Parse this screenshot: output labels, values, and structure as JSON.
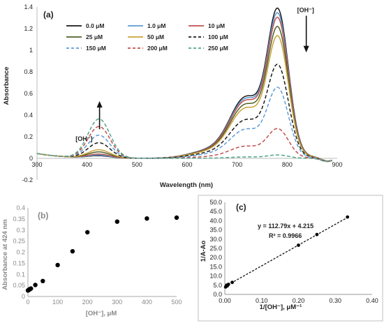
{
  "chart_data": [
    {
      "id": "a",
      "panel_label": "(a)",
      "type": "line",
      "xlabel": "Wavelength (nm)",
      "ylabel": "Absorbance",
      "xlim": [
        300,
        900
      ],
      "ylim": [
        -0.2,
        1.4
      ],
      "xticks": [
        300,
        400,
        500,
        600,
        700,
        800,
        900
      ],
      "yticks": [
        -0.2,
        0,
        0.2,
        0.4,
        0.6,
        0.8,
        1,
        1.2,
        1.4
      ],
      "ytick_labels": [
        "-0.2",
        "0",
        "0.2",
        "0.4",
        "0.6",
        "0.8",
        "1",
        "1.2",
        "1.4"
      ],
      "grid": false,
      "legend_position": "top",
      "annotations": [
        {
          "text": "[OH⁻]",
          "x": 820,
          "y": 1.37,
          "arrow": "down"
        },
        {
          "text": "[OH⁻]",
          "x": 412,
          "y": 0.18,
          "arrow": "up"
        }
      ],
      "series": [
        {
          "name": "0.0 μM",
          "color": "#1a1a1a",
          "dash": "solid",
          "peak424": 0.02,
          "peak780": 1.31
        },
        {
          "name": "1.0 μM",
          "color": "#5b9bd5",
          "dash": "solid",
          "peak424": 0.025,
          "peak780": 1.27
        },
        {
          "name": "10 μM",
          "color": "#c0504d",
          "dash": "solid",
          "peak424": 0.035,
          "peak780": 1.23
        },
        {
          "name": "25 μM",
          "color": "#4f6228",
          "dash": "solid",
          "peak424": 0.055,
          "peak780": 1.15
        },
        {
          "name": "50 μM",
          "color": "#c9a23a",
          "dash": "solid",
          "peak424": 0.075,
          "peak780": 1.07
        },
        {
          "name": "100 μM",
          "color": "#1a1a1a",
          "dash": "dashed",
          "peak424": 0.14,
          "peak780": 0.82
        },
        {
          "name": "150 μM",
          "color": "#5b9bd5",
          "dash": "dashed",
          "peak424": 0.21,
          "peak780": 0.62
        },
        {
          "name": "200 μM",
          "color": "#c0504d",
          "dash": "dashed",
          "peak424": 0.29,
          "peak780": 0.26
        },
        {
          "name": "250 μM",
          "color": "#4fa58a",
          "dash": "dashed",
          "peak424": 0.36,
          "peak780": 0.03
        }
      ]
    },
    {
      "id": "b",
      "panel_label": "(b)",
      "type": "scatter",
      "xlabel": "[OH⁻], μM",
      "ylabel": "Absorbance at 424 nm",
      "xlim": [
        0,
        500
      ],
      "ylim": [
        0,
        0.4
      ],
      "xticks": [
        0,
        100,
        200,
        300,
        400,
        500
      ],
      "yticks": [
        0,
        0.05,
        0.1,
        0.15,
        0.2,
        0.25,
        0.3,
        0.35,
        0.4
      ],
      "ytick_labels": [
        "0",
        "0.05",
        "0.1",
        "0.15",
        "0.2",
        "0.25",
        "0.3",
        "0.35",
        "0.4"
      ],
      "grid": false,
      "x": [
        0,
        1,
        2,
        3,
        4,
        5,
        6,
        8,
        10,
        25,
        50,
        100,
        150,
        200,
        300,
        400,
        500
      ],
      "y": [
        0.027,
        0.028,
        0.029,
        0.03,
        0.031,
        0.032,
        0.033,
        0.034,
        0.036,
        0.052,
        0.07,
        0.142,
        0.204,
        0.29,
        0.338,
        0.352,
        0.356
      ]
    },
    {
      "id": "c",
      "panel_label": "(c)",
      "type": "scatter",
      "xlabel": "1/[OH⁻], μM⁻¹",
      "ylabel": "1/A-Ao",
      "xlim": [
        0,
        0.4
      ],
      "ylim": [
        0,
        50
      ],
      "xticks": [
        0,
        0.1,
        0.2,
        0.3,
        0.4
      ],
      "xtick_labels": [
        "0.00",
        "0.10",
        "0.20",
        "0.30",
        "0.40"
      ],
      "yticks": [
        0,
        5,
        10,
        15,
        20,
        25,
        30,
        35,
        40,
        45,
        50
      ],
      "ytick_labels": [
        "0.0",
        "5.0",
        "10.0",
        "15.0",
        "20.0",
        "25.0",
        "30.0",
        "35.0",
        "40.0",
        "45.0",
        "50.0"
      ],
      "grid": false,
      "equation": "y = 112.79x + 4.215",
      "r_squared": "R² = 0.9966",
      "fit": {
        "slope": 112.79,
        "intercept": 4.215
      },
      "x": [
        0.002,
        0.004,
        0.005,
        0.0067,
        0.01,
        0.02,
        0.2,
        0.25,
        0.333
      ],
      "y": [
        4.0,
        4.5,
        5.0,
        4.6,
        5.5,
        6.5,
        26.7,
        32.5,
        42.0
      ]
    }
  ]
}
